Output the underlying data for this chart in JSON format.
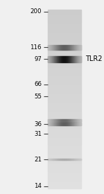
{
  "mw_markers": [
    200,
    116,
    97,
    66,
    55,
    36,
    31,
    21,
    14
  ],
  "tlr2_label": "TLR2",
  "tlr2_kda": 97,
  "fig_width": 1.5,
  "fig_height": 2.8,
  "dpi": 100,
  "bg_color": "#f0f0f0",
  "bands": [
    {
      "kda": 116,
      "strength": 0.55,
      "bh": 0.022
    },
    {
      "kda": 97,
      "strength": 0.92,
      "bh": 0.03
    },
    {
      "kda": 38,
      "strength": 0.5,
      "bh": 0.015
    },
    {
      "kda": 36,
      "strength": 0.55,
      "bh": 0.015
    },
    {
      "kda": 21,
      "strength": 0.18,
      "bh": 0.008
    }
  ]
}
